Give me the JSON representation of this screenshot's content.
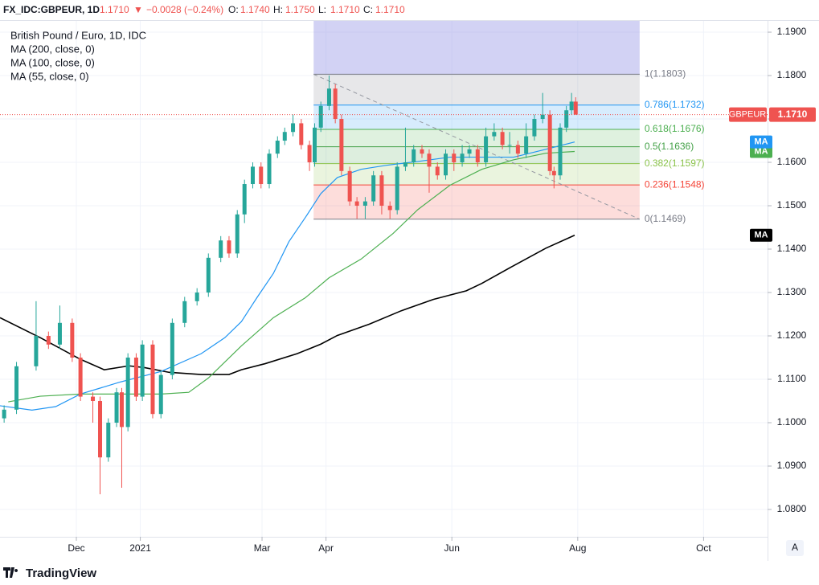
{
  "chart_data": {
    "type": "candlestick",
    "header": {
      "symbol": "FX_IDC:GBPEUR, 1D",
      "last": "1.1710",
      "arrow": "▼",
      "change": "−0.0028 (−0.24%)",
      "ohlc": [
        {
          "key": "O:",
          "value": "1.1740"
        },
        {
          "key": "H:",
          "value": "1.1750"
        },
        {
          "key": "L:",
          "value": "1.1710"
        },
        {
          "key": "C:",
          "value": "1.1710"
        }
      ]
    },
    "title": "British Pound / Euro, 1D, IDC",
    "xlim": [
      0,
      372
    ],
    "xticks": [
      {
        "value": 37,
        "label": "Dec"
      },
      {
        "value": 68,
        "label": "2021"
      },
      {
        "value": 127,
        "label": "Mar"
      },
      {
        "value": 158,
        "label": "Apr"
      },
      {
        "value": 219,
        "label": "Jun"
      },
      {
        "value": 280,
        "label": "Aug"
      },
      {
        "value": 341,
        "label": "Oct"
      }
    ],
    "ylim": [
      1.0737,
      1.1926
    ],
    "yticks": [
      {
        "value": 1.08,
        "label": "1.0800"
      },
      {
        "value": 1.09,
        "label": "1.0900"
      },
      {
        "value": 1.1,
        "label": "1.1000"
      },
      {
        "value": 1.11,
        "label": "1.1100"
      },
      {
        "value": 1.12,
        "label": "1.1200"
      },
      {
        "value": 1.13,
        "label": "1.1300"
      },
      {
        "value": 1.14,
        "label": "1.1400"
      },
      {
        "value": 1.15,
        "label": "1.1500"
      },
      {
        "value": 1.16,
        "label": "1.1600"
      },
      {
        "value": 1.17,
        "label": "1.1700"
      },
      {
        "value": 1.18,
        "label": "1.1800"
      },
      {
        "value": 1.19,
        "label": "1.1900"
      }
    ],
    "grid": true,
    "up_color": "#26a69a",
    "down_color": "#ef5350",
    "x": [
      2,
      8,
      17.5,
      23.5,
      29,
      35,
      39,
      45,
      48.5,
      52.5,
      56.5,
      59,
      62,
      66,
      69,
      74,
      78,
      83.5,
      89.5,
      95.5,
      101,
      107,
      111,
      115,
      118.5,
      122.5,
      126.5,
      130.5,
      134.5,
      138,
      142,
      146,
      150,
      152.5,
      155.5,
      159.5,
      162.5,
      165.5,
      169.5,
      173,
      177,
      181,
      185,
      189,
      192.5,
      196.5,
      200.5,
      204.5,
      208,
      212,
      216,
      220,
      224,
      227.5,
      231.5,
      235.5,
      239.5,
      243.5,
      247,
      251,
      255,
      259,
      263,
      266.5,
      268.5,
      271.5,
      274.5,
      277,
      279
    ],
    "open": [
      1.101,
      1.103,
      1.113,
      1.12,
      1.118,
      1.123,
      1.115,
      1.106,
      1.105,
      1.092,
      1.1,
      1.107,
      1.099,
      1.115,
      1.106,
      1.118,
      1.102,
      1.111,
      1.123,
      1.128,
      1.13,
      1.138,
      1.142,
      1.139,
      1.148,
      1.155,
      1.159,
      1.155,
      1.162,
      1.165,
      1.167,
      1.169,
      1.164,
      1.16,
      1.168,
      1.173,
      1.177,
      1.17,
      1.158,
      1.151,
      1.15,
      1.151,
      1.157,
      1.15,
      1.149,
      1.159,
      1.16,
      1.163,
      1.162,
      1.159,
      1.157,
      1.162,
      1.16,
      1.162,
      1.163,
      1.16,
      1.166,
      1.167,
      1.164,
      1.164,
      1.162,
      1.166,
      1.17,
      1.171,
      1.158,
      1.157,
      1.168,
      1.172,
      1.174
    ],
    "high": [
      1.104,
      1.114,
      1.128,
      1.121,
      1.127,
      1.124,
      1.116,
      1.107,
      1.106,
      1.101,
      1.108,
      1.108,
      1.116,
      1.116,
      1.119,
      1.119,
      1.112,
      1.124,
      1.129,
      1.131,
      1.139,
      1.143,
      1.143,
      1.149,
      1.156,
      1.16,
      1.16,
      1.163,
      1.166,
      1.168,
      1.171,
      1.17,
      1.165,
      1.169,
      1.174,
      1.18,
      1.178,
      1.171,
      1.159,
      1.152,
      1.152,
      1.158,
      1.158,
      1.151,
      1.16,
      1.168,
      1.164,
      1.164,
      1.163,
      1.16,
      1.163,
      1.163,
      1.164,
      1.164,
      1.164,
      1.168,
      1.169,
      1.168,
      1.167,
      1.165,
      1.169,
      1.171,
      1.176,
      1.172,
      1.159,
      1.169,
      1.173,
      1.176,
      1.175
    ],
    "low": [
      1.1,
      1.102,
      1.112,
      1.117,
      1.117,
      1.114,
      1.105,
      1.1,
      1.0835,
      1.091,
      1.099,
      1.085,
      1.098,
      1.105,
      1.105,
      1.101,
      1.101,
      1.11,
      1.122,
      1.127,
      1.129,
      1.137,
      1.138,
      1.138,
      1.146,
      1.154,
      1.154,
      1.154,
      1.161,
      1.164,
      1.166,
      1.163,
      1.158,
      1.159,
      1.167,
      1.172,
      1.169,
      1.157,
      1.15,
      1.147,
      1.147,
      1.15,
      1.148,
      1.147,
      1.148,
      1.158,
      1.159,
      1.161,
      1.153,
      1.156,
      1.156,
      1.158,
      1.159,
      1.161,
      1.159,
      1.159,
      1.165,
      1.163,
      1.162,
      1.161,
      1.161,
      1.165,
      1.169,
      1.157,
      1.154,
      1.156,
      1.167,
      1.171,
      1.171
    ],
    "close": [
      1.103,
      1.113,
      1.12,
      1.118,
      1.123,
      1.115,
      1.106,
      1.105,
      1.092,
      1.1,
      1.107,
      1.099,
      1.115,
      1.106,
      1.118,
      1.102,
      1.111,
      1.123,
      1.128,
      1.13,
      1.138,
      1.142,
      1.139,
      1.148,
      1.155,
      1.159,
      1.155,
      1.162,
      1.165,
      1.167,
      1.169,
      1.164,
      1.16,
      1.168,
      1.173,
      1.177,
      1.17,
      1.158,
      1.151,
      1.15,
      1.151,
      1.157,
      1.15,
      1.149,
      1.159,
      1.16,
      1.163,
      1.162,
      1.159,
      1.157,
      1.162,
      1.16,
      1.162,
      1.163,
      1.16,
      1.166,
      1.167,
      1.164,
      1.164,
      1.162,
      1.166,
      1.17,
      1.171,
      1.158,
      1.157,
      1.168,
      1.172,
      1.174,
      1.171
    ],
    "series": [
      {
        "name": "MA (200, close, 0)",
        "tag": "MA",
        "color": "#000000",
        "x": [
          0,
          19.5,
          39,
          50.5,
          62.5,
          70,
          82,
          97.5,
          111,
          117,
          128.5,
          144,
          155.5,
          163.5,
          179,
          194.5,
          210,
          226,
          233.5,
          249,
          264.5,
          278.5
        ],
        "values": [
          1.1242,
          1.1196,
          1.1146,
          1.1122,
          1.1131,
          1.1127,
          1.1116,
          1.1111,
          1.1111,
          1.1122,
          1.1136,
          1.1159,
          1.1181,
          1.1201,
          1.1227,
          1.1258,
          1.1284,
          1.1304,
          1.1321,
          1.1362,
          1.1402,
          1.1432
        ]
      },
      {
        "name": "MA (100, close, 0)",
        "tag": "MA",
        "color": "#4caf50",
        "x": [
          4,
          19.5,
          39,
          58.5,
          78,
          91.5,
          101,
          117,
          132.5,
          148,
          159.5,
          175,
          190.5,
          202.5,
          218,
          233.5,
          249,
          264.5,
          278.5
        ],
        "values": [
          1.1048,
          1.1061,
          1.1066,
          1.1066,
          1.1066,
          1.107,
          1.1103,
          1.1177,
          1.1242,
          1.1288,
          1.1334,
          1.1377,
          1.1436,
          1.1491,
          1.1547,
          1.1584,
          1.1606,
          1.1621,
          1.1625
        ]
      },
      {
        "name": "MA (55, close, 0)",
        "tag": "MA",
        "color": "#2196f3",
        "x": [
          0,
          15.5,
          27,
          39,
          58.5,
          78,
          97.5,
          109,
          117,
          124.5,
          132.5,
          140,
          148,
          155.5,
          163.5,
          175,
          187,
          202.5,
          218,
          233.5,
          249,
          264.5,
          278.5
        ],
        "values": [
          1.1039,
          1.1029,
          1.1037,
          1.1066,
          1.1094,
          1.1118,
          1.1159,
          1.1196,
          1.1233,
          1.1288,
          1.1344,
          1.1417,
          1.1473,
          1.1528,
          1.1565,
          1.1584,
          1.1593,
          1.1602,
          1.1612,
          1.1612,
          1.1612,
          1.163,
          1.1647
        ]
      }
    ],
    "fib": {
      "x": [
        152,
        310
      ],
      "extension_color": "#9c9ce6",
      "levels": [
        {
          "value": 1.1803,
          "label": "1(1.1803)",
          "color": "#787b86"
        },
        {
          "value": 1.1732,
          "label": "0.786(1.1732)",
          "color": "#2196f3"
        },
        {
          "value": 1.1676,
          "label": "0.618(1.1676)",
          "color": "#4caf50"
        },
        {
          "value": 1.1636,
          "label": "0.5(1.1636)",
          "color": "#43a047"
        },
        {
          "value": 1.1597,
          "label": "0.382(1.1597)",
          "color": "#8bc34a"
        },
        {
          "value": 1.1548,
          "label": "0.236(1.1548)",
          "color": "#f44336"
        },
        {
          "value": 1.1469,
          "label": "0(1.1469)",
          "color": "#787b86"
        }
      ]
    },
    "trendline": {
      "x": [
        152,
        310
      ],
      "y": [
        1.1803,
        1.1469
      ],
      "color": "#9598a1"
    },
    "last_price": {
      "name": "GBPEUR",
      "value": 1.171,
      "label": "1.1710",
      "color": "#ef5350"
    },
    "auto_button": "A",
    "footer": "TradingView"
  }
}
